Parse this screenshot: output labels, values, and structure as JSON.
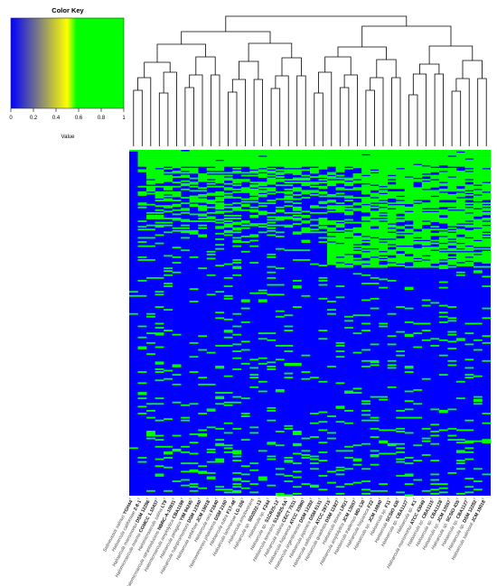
{
  "chart_data": {
    "type": "heatmap",
    "title": "",
    "color_key": {
      "title": "Color Key",
      "xlabel": "Value",
      "ticks": [
        "0",
        "0.2",
        "0.4",
        "0.6",
        "0.8",
        "1"
      ],
      "range": [
        0,
        1
      ],
      "gradient": [
        "#0000ff",
        "#ffff00",
        "#00ff00"
      ]
    },
    "colors": {
      "low": "#0000ff",
      "high": "#00ff00",
      "mid": "#ffff00"
    },
    "value_range": [
      0,
      1
    ],
    "column_dendrogram": true,
    "row_dendrogram": false,
    "columns": [
      {
        "prefix": "Salinirussus salinus ",
        "strain": "YGH44",
        "sup": "T"
      },
      {
        "prefix": "Haloarcula californiae ",
        "strain": "2-8-1",
        "sup": "T"
      },
      {
        "prefix": "Haloarcula marismortui ",
        "strain": "DSM 12286",
        "sup": "T"
      },
      {
        "prefix": "Halomicroarcula marina ",
        "strain": "CGMCC 1.10437",
        "sup": "T"
      },
      {
        "prefix": "Halomicroarcula salina ",
        "strain": "LT9",
        "sup": "T"
      },
      {
        "prefix": "Halomicroarcula nitratireducens ",
        "strain": "NBRC-A-10931",
        "sup": "T"
      },
      {
        "prefix": "Halomicroarcula amylolytica ",
        "strain": "CBA1199",
        "sup": "T"
      },
      {
        "prefix": "Haloarcula pelagica ",
        "strain": "YIM 94245",
        "sup": "T"
      },
      {
        "prefix": "Haloarcula rubripromontorii ",
        "strain": "DSM 12340",
        "sup": "T"
      },
      {
        "prefix": "Haloarcula sebkhae ",
        "strain": "JCM 19018",
        "sup": "T"
      },
      {
        "prefix": "Haloarcula rara ",
        "strain": "F1640",
        "sup": "T"
      },
      {
        "prefix": "Natronomonas pharaonis ",
        "strain": "DSM 2160",
        "sup": "T"
      },
      {
        "prefix": "Haloarcula rubra ",
        "strain": "F17-48",
        "sup": "T"
      },
      {
        "prefix": "Haloarcula laminariae ",
        "strain": "LG-106",
        "sup": "T"
      },
      {
        "prefix": "Haloarcula amylovorans ",
        "strain": "",
        "sup": ""
      },
      {
        "prefix": "Haloarcula sp. ",
        "strain": "SD2022-13",
        "sup": "T"
      },
      {
        "prefix": "Haloarcula sp. ",
        "strain": "F244",
        "sup": "T"
      },
      {
        "prefix": "Haloarcula sp. ",
        "strain": "S1CR25-12",
        "sup": "T"
      },
      {
        "prefix": "Haloarcula terrestris ",
        "strain": "S1AR25-5A",
        "sup": "T"
      },
      {
        "prefix": "Haloarcula salaria ",
        "strain": "CECT 7531",
        "sup": "T"
      },
      {
        "prefix": "Haloarcula hispanica ",
        "strain": "ATCC 33960",
        "sup": "T"
      },
      {
        "prefix": "Haloarcula argentinensis ",
        "strain": "DSM 12282",
        "sup": "T"
      },
      {
        "prefix": "Haloarcula japonica ",
        "strain": "DSM 6131",
        "sup": "T"
      },
      {
        "prefix": "Haloarcula vallismortis ",
        "strain": "ATCC 29715",
        "sup": "T"
      },
      {
        "prefix": "Haloarcula quadrata ",
        "strain": "DSM 11927",
        "sup": "T"
      },
      {
        "prefix": "Haloarcula litorea ",
        "strain": "LR21",
        "sup": "T"
      },
      {
        "prefix": "Haloarcula amylolytica ",
        "strain": "JCM 13557",
        "sup": "T"
      },
      {
        "prefix": "Haloarcula tradensis ",
        "strain": "MD-130",
        "sup": "T"
      },
      {
        "prefix": "Haloarcula hispanica ",
        "strain": "F22",
        "sup": "T"
      },
      {
        "prefix": "Haloarcula sp. ",
        "strain": "JCM 16840",
        "sup": "T"
      },
      {
        "prefix": "Haloarcula sp. ",
        "strain": "F11",
        "sup": "T"
      },
      {
        "prefix": "Haloarcula ",
        "strain": "SCSIO 435",
        "sup": "T"
      },
      {
        "prefix": "Haloarcula sp. ",
        "strain": "CBA1127",
        "sup": "T"
      },
      {
        "prefix": "Haloarcula sp. ",
        "strain": "K1",
        "sup": "T"
      },
      {
        "prefix": "Haloarcula marismortui ",
        "strain": "ATCC 43049",
        "sup": "T"
      },
      {
        "prefix": "Haloarcula sp. ",
        "strain": "CBA1115",
        "sup": "T"
      },
      {
        "prefix": "Haloarcula sp. ",
        "strain": "CBA1128",
        "sup": "T"
      },
      {
        "prefix": "Haloarcula sp. ",
        "strain": "JCM 13557",
        "sup": "T"
      },
      {
        "prefix": "Haloarcula sp. ",
        "strain": "SCSIO 435",
        "sup": "T"
      },
      {
        "prefix": "Haloarcula sp. ",
        "strain": "CBA1127",
        "sup": "T"
      },
      {
        "prefix": "Haloarcula sp. ",
        "strain": "DSM 12282",
        "sup": "T"
      },
      {
        "prefix": "Haloarcula salinisoli ",
        "strain": "JCM 19018",
        "sup": "T"
      }
    ],
    "rows": 250
  }
}
